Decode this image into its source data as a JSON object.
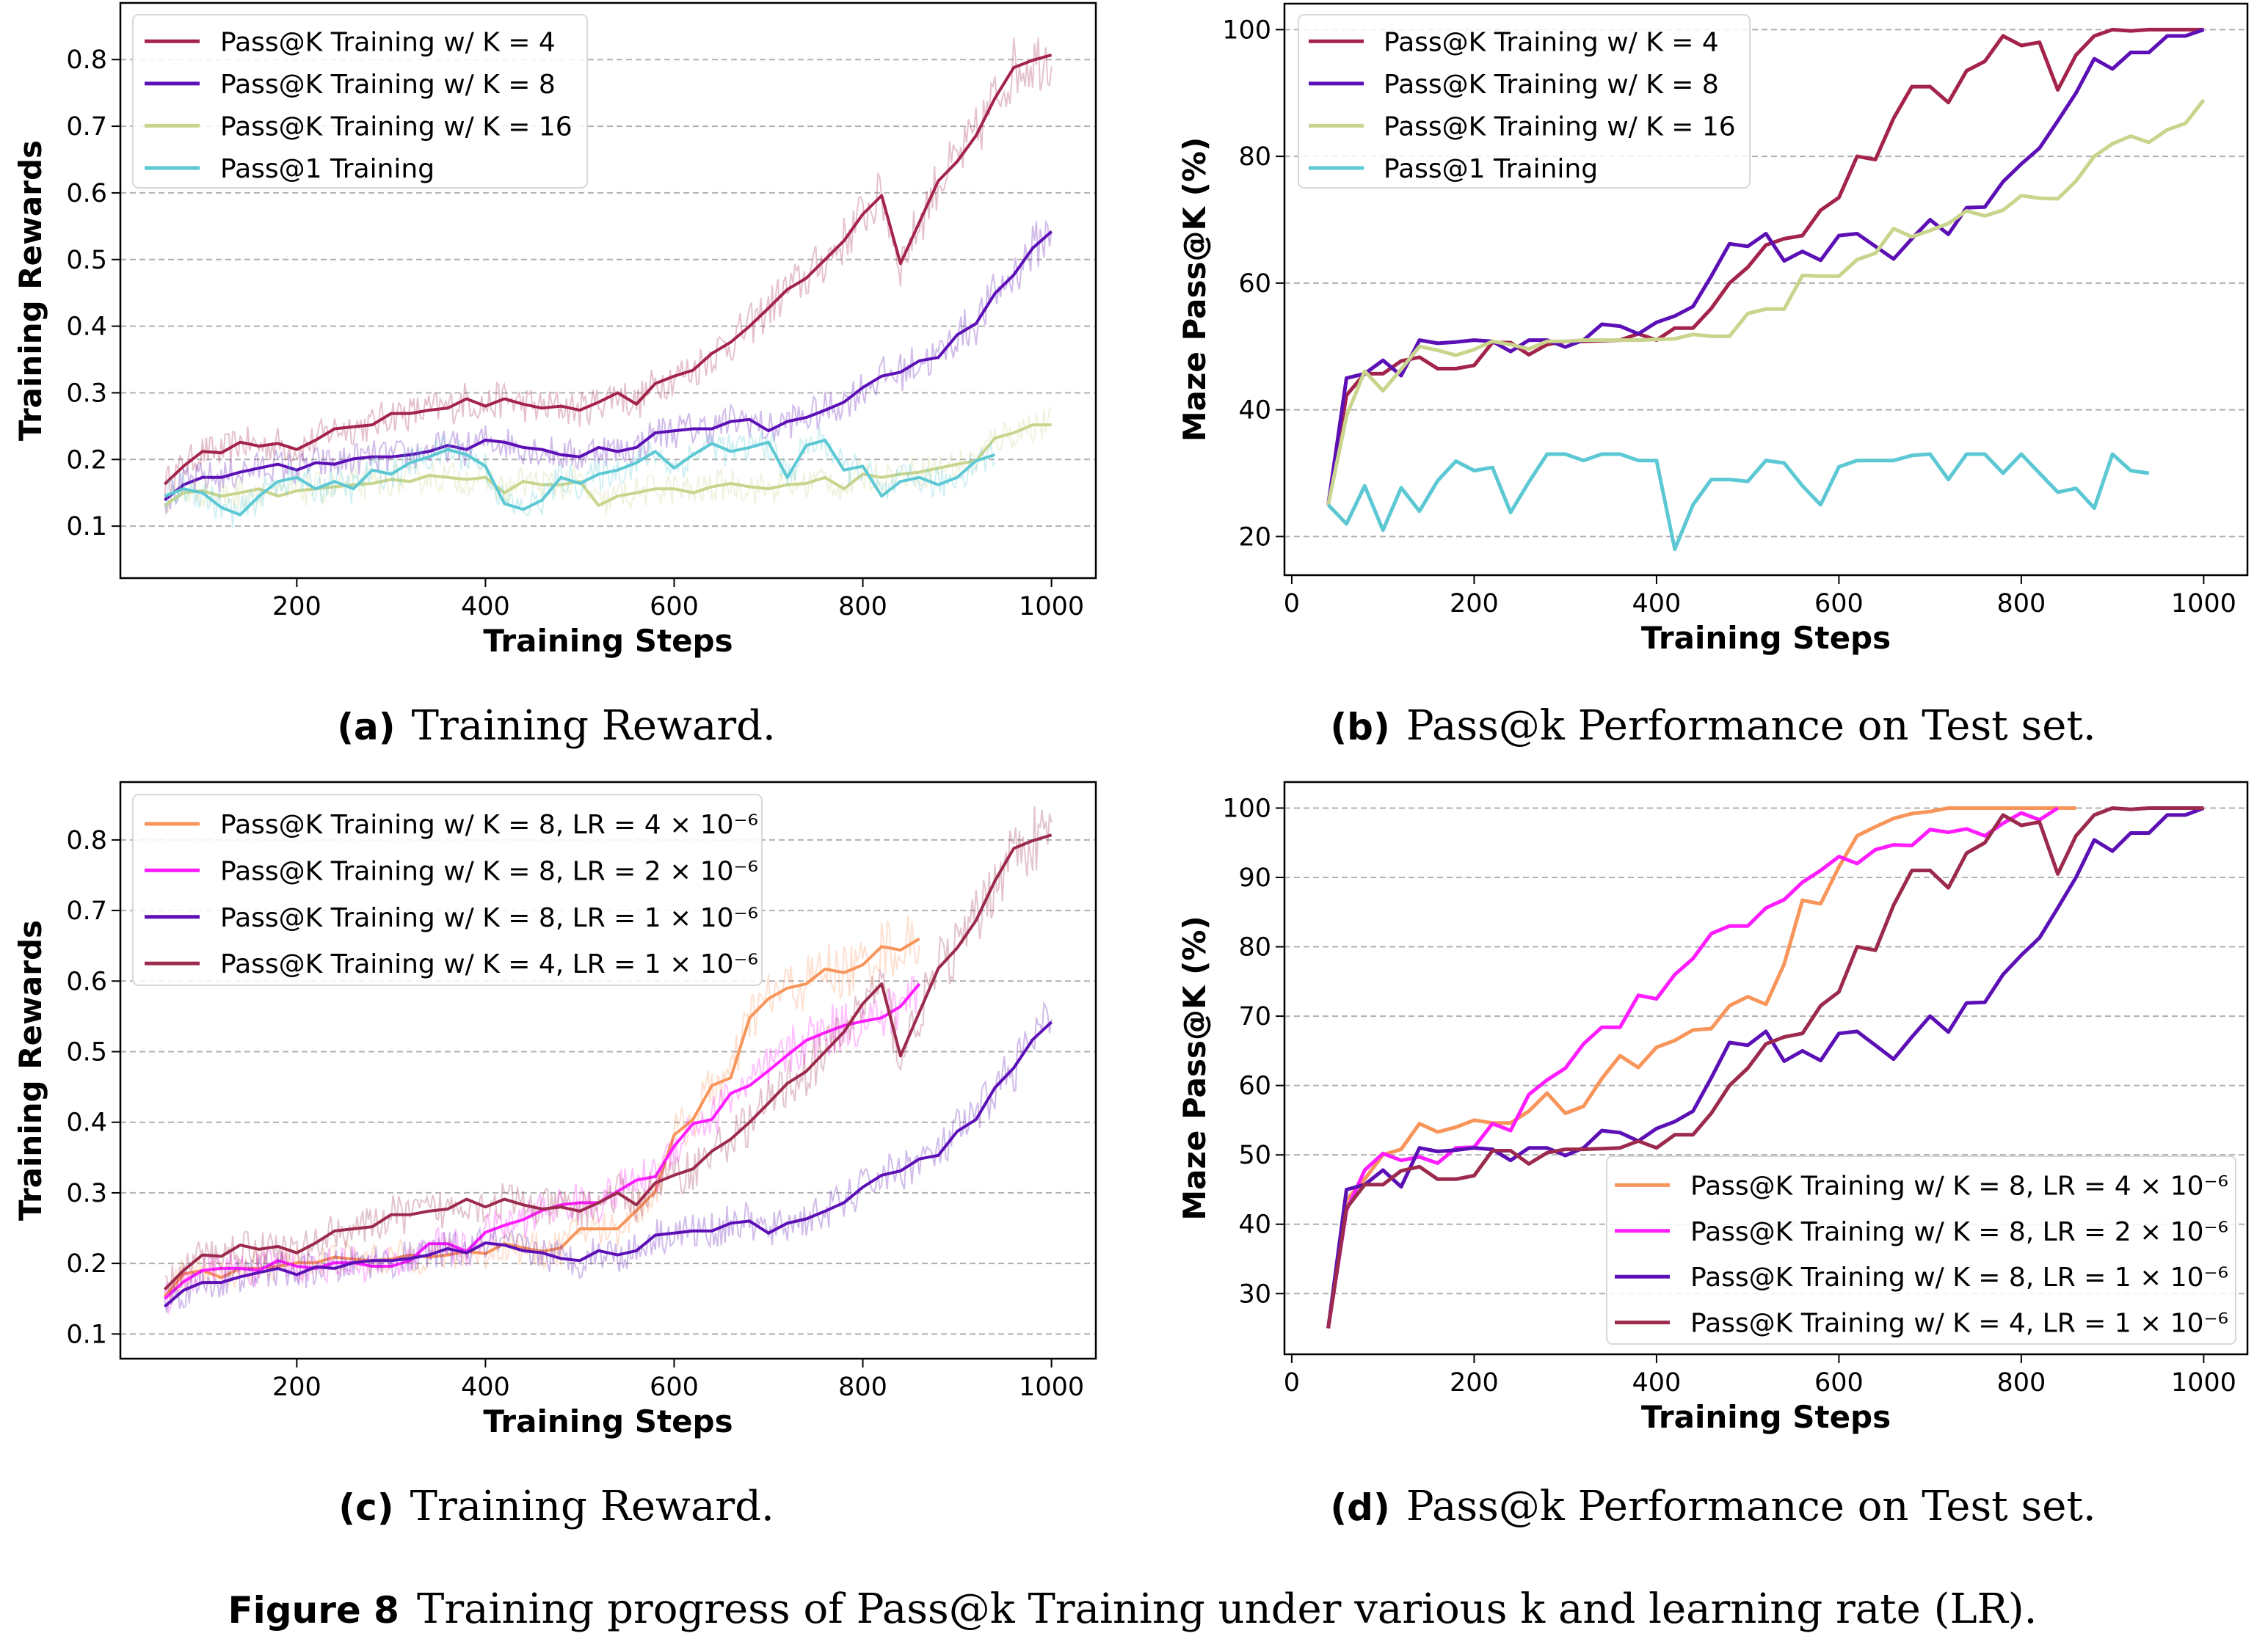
{
  "figure_caption": {
    "label": "Figure 8",
    "text": "Training progress of Pass@k Training under various k and learning rate (LR)."
  },
  "chart_data": [
    {
      "type": "line",
      "caption_label": "(a)",
      "caption": "Training Reward.",
      "xlabel": "Training Steps",
      "ylabel": "Training Rewards",
      "xlim": [
        13,
        1047
      ],
      "ylim": [
        0.022,
        0.885
      ],
      "xticks": [
        200,
        400,
        600,
        800,
        1000
      ],
      "yticks": [
        0.1,
        0.2,
        0.3,
        0.4,
        0.5,
        0.6,
        0.7,
        0.8
      ],
      "grid": "y-dashed",
      "legend_position": "top-left",
      "noisy_raw": true,
      "x_start": 60,
      "x_step": 20,
      "series": [
        {
          "name": "Pass@K Training w/ K = 4",
          "color": "#a3234a",
          "values": [
            0.163,
            0.19,
            0.212,
            0.21,
            0.226,
            0.22,
            0.224,
            0.215,
            0.229,
            0.246,
            0.249,
            0.252,
            0.269,
            0.269,
            0.274,
            0.277,
            0.291,
            0.28,
            0.291,
            0.283,
            0.277,
            0.28,
            0.274,
            0.286,
            0.3,
            0.283,
            0.314,
            0.325,
            0.334,
            0.359,
            0.376,
            0.4,
            0.427,
            0.455,
            0.472,
            0.5,
            0.528,
            0.568,
            0.596,
            0.494,
            0.556,
            0.618,
            0.647,
            0.686,
            0.742,
            0.788,
            0.799,
            0.807
          ]
        },
        {
          "name": "Pass@K Training w/ K = 8",
          "color": "#5b0fb5",
          "values": [
            0.139,
            0.162,
            0.173,
            0.173,
            0.181,
            0.187,
            0.193,
            0.184,
            0.195,
            0.193,
            0.201,
            0.204,
            0.204,
            0.207,
            0.212,
            0.221,
            0.215,
            0.229,
            0.226,
            0.218,
            0.215,
            0.207,
            0.204,
            0.218,
            0.212,
            0.218,
            0.24,
            0.243,
            0.246,
            0.246,
            0.257,
            0.26,
            0.243,
            0.257,
            0.263,
            0.274,
            0.286,
            0.308,
            0.325,
            0.331,
            0.348,
            0.353,
            0.387,
            0.404,
            0.449,
            0.477,
            0.517,
            0.542
          ]
        },
        {
          "name": "Pass@K Training w/ K = 16",
          "color": "#c9d48c",
          "values": [
            0.131,
            0.15,
            0.153,
            0.145,
            0.15,
            0.156,
            0.145,
            0.153,
            0.156,
            0.159,
            0.162,
            0.164,
            0.17,
            0.167,
            0.176,
            0.173,
            0.17,
            0.173,
            0.15,
            0.167,
            0.162,
            0.162,
            0.167,
            0.131,
            0.145,
            0.15,
            0.156,
            0.156,
            0.15,
            0.159,
            0.164,
            0.159,
            0.156,
            0.162,
            0.164,
            0.173,
            0.156,
            0.178,
            0.173,
            0.178,
            0.181,
            0.187,
            0.193,
            0.198,
            0.232,
            0.24,
            0.252,
            0.252
          ]
        },
        {
          "name": "Pass@1 Training",
          "color": "#5cc8d4",
          "values": [
            0.145,
            0.156,
            0.15,
            0.128,
            0.117,
            0.145,
            0.167,
            0.173,
            0.156,
            0.167,
            0.156,
            0.184,
            0.178,
            0.195,
            0.204,
            0.215,
            0.207,
            0.19,
            0.134,
            0.125,
            0.139,
            0.173,
            0.164,
            0.178,
            0.184,
            0.195,
            0.212,
            0.187,
            0.207,
            0.224,
            0.212,
            0.218,
            0.226,
            0.173,
            0.221,
            0.229,
            0.184,
            0.19,
            0.145,
            0.167,
            0.173,
            0.162,
            0.173,
            0.198,
            0.207
          ]
        }
      ]
    },
    {
      "type": "line",
      "caption_label": "(b)",
      "caption": "Pass@k Performance on Test set.",
      "xlabel": "Training Steps",
      "ylabel": "Maze Pass@K (%)",
      "xlim": [
        -8,
        1048
      ],
      "ylim": [
        13.9,
        104.1
      ],
      "xticks": [
        0,
        200,
        400,
        600,
        800,
        1000
      ],
      "yticks": [
        20,
        40,
        60,
        80,
        100
      ],
      "grid": "y-dashed",
      "legend_position": "top-left",
      "noisy_raw": false,
      "x_start": 40,
      "x_step": 20,
      "series": [
        {
          "name": "Pass@K Training w/ K = 4",
          "color": "#a3234a",
          "values": [
            25,
            42.3,
            45.7,
            45.7,
            47.7,
            48.3,
            46.5,
            46.5,
            47,
            50.6,
            50.6,
            48.7,
            50.3,
            50.8,
            50.8,
            50.9,
            51,
            52,
            51,
            52.9,
            52.9,
            56,
            60,
            62.5,
            66,
            67,
            67.5,
            71.5,
            73.5,
            80,
            79.5,
            86,
            91,
            91,
            88.5,
            93.5,
            95,
            99,
            97.5,
            98,
            90.5,
            96,
            99,
            100,
            99.8,
            100,
            100,
            100,
            100
          ]
        },
        {
          "name": "Pass@K Training w/ K = 8",
          "color": "#5b0fb5",
          "values": [
            25,
            45,
            45.7,
            47.8,
            45.4,
            51,
            50.5,
            50.7,
            51,
            50.8,
            49.2,
            51,
            51,
            49.9,
            51,
            53.5,
            53.2,
            52,
            53.8,
            54.8,
            56.3,
            61.1,
            66.2,
            65.8,
            67.8,
            63.5,
            65,
            63.6,
            67.5,
            67.8,
            65.8,
            63.8,
            67,
            70,
            67.7,
            71.9,
            72,
            76,
            78.8,
            81.3,
            85.6,
            90,
            95.4,
            93.8,
            96.4,
            96.4,
            99,
            99,
            100
          ]
        },
        {
          "name": "Pass@K Training w/ K = 16",
          "color": "#c9d48c",
          "values": [
            25,
            39,
            46.1,
            43,
            46.4,
            50,
            49.4,
            48.6,
            49.5,
            50.8,
            50.3,
            49.6,
            50.8,
            50.8,
            51,
            51,
            51,
            51,
            51.1,
            51.2,
            51.9,
            51.6,
            51.6,
            55.2,
            55.9,
            55.9,
            61.2,
            61.1,
            61.1,
            63.7,
            64.7,
            68.6,
            67.3,
            68.3,
            69.4,
            71.4,
            70.6,
            71.5,
            73.8,
            73.4,
            73.3,
            76.1,
            80,
            82,
            83.2,
            82.2,
            84.2,
            85.2,
            88.9
          ]
        },
        {
          "name": "Pass@1 Training",
          "color": "#5cc8d4",
          "values": [
            25,
            22,
            28,
            21,
            27.7,
            24,
            28.8,
            31.9,
            30.4,
            30.9,
            23.8,
            28.6,
            33,
            33,
            32,
            33,
            33,
            32,
            32,
            18,
            25,
            29,
            29,
            28.7,
            32,
            31.6,
            28,
            25,
            31,
            32,
            32,
            32,
            32.8,
            33,
            29,
            33,
            33,
            30,
            33,
            30,
            27,
            27.6,
            24.5,
            33,
            30.4,
            30
          ]
        }
      ]
    },
    {
      "type": "line",
      "caption_label": "(c)",
      "caption": "Training Reward.",
      "xlabel": "Training Steps",
      "ylabel": "Training Rewards",
      "xlim": [
        13,
        1047
      ],
      "ylim": [
        0.065,
        0.882
      ],
      "xticks": [
        200,
        400,
        600,
        800,
        1000
      ],
      "yticks": [
        0.1,
        0.2,
        0.3,
        0.4,
        0.5,
        0.6,
        0.7,
        0.8
      ],
      "grid": "y-dashed",
      "legend_position": "top-left",
      "noisy_raw": true,
      "x_start": 60,
      "x_step": 20,
      "series": [
        {
          "name": "Pass@K Training w/ K = 8, LR = 4 × 10⁻⁶",
          "color": "#f7955a",
          "values": [
            0.153,
            0.185,
            0.19,
            0.18,
            0.193,
            0.193,
            0.196,
            0.201,
            0.201,
            0.209,
            0.206,
            0.204,
            0.206,
            0.212,
            0.209,
            0.212,
            0.217,
            0.214,
            0.228,
            0.222,
            0.217,
            0.222,
            0.249,
            0.249,
            0.249,
            0.275,
            0.302,
            0.382,
            0.404,
            0.452,
            0.463,
            0.548,
            0.575,
            0.59,
            0.596,
            0.617,
            0.612,
            0.623,
            0.649,
            0.644,
            0.66
          ]
        },
        {
          "name": "Pass@K Training w/ K = 8, LR = 2 × 10⁻⁶",
          "color": "#ff1cff",
          "values": [
            0.15,
            0.174,
            0.19,
            0.193,
            0.193,
            0.19,
            0.204,
            0.196,
            0.193,
            0.201,
            0.201,
            0.196,
            0.196,
            0.204,
            0.228,
            0.228,
            0.217,
            0.244,
            0.254,
            0.262,
            0.275,
            0.283,
            0.286,
            0.286,
            0.302,
            0.318,
            0.323,
            0.366,
            0.398,
            0.404,
            0.441,
            0.452,
            0.473,
            0.495,
            0.516,
            0.527,
            0.537,
            0.543,
            0.548,
            0.564,
            0.596
          ]
        },
        {
          "name": "Pass@K Training w/ K = 8, LR = 1 × 10⁻⁶",
          "color": "#5b0fb5",
          "values": [
            0.139,
            0.162,
            0.173,
            0.173,
            0.181,
            0.187,
            0.193,
            0.184,
            0.195,
            0.193,
            0.201,
            0.204,
            0.204,
            0.207,
            0.212,
            0.221,
            0.215,
            0.229,
            0.226,
            0.218,
            0.215,
            0.207,
            0.204,
            0.218,
            0.212,
            0.218,
            0.24,
            0.243,
            0.246,
            0.246,
            0.257,
            0.26,
            0.243,
            0.257,
            0.263,
            0.274,
            0.286,
            0.308,
            0.325,
            0.331,
            0.348,
            0.353,
            0.387,
            0.404,
            0.449,
            0.477,
            0.517,
            0.542
          ]
        },
        {
          "name": "Pass@K Training w/ K = 4, LR = 1 × 10⁻⁶",
          "color": "#9b2a4c",
          "values": [
            0.163,
            0.19,
            0.212,
            0.21,
            0.226,
            0.22,
            0.224,
            0.215,
            0.229,
            0.246,
            0.249,
            0.252,
            0.269,
            0.269,
            0.274,
            0.277,
            0.291,
            0.28,
            0.291,
            0.283,
            0.277,
            0.28,
            0.274,
            0.286,
            0.3,
            0.283,
            0.314,
            0.325,
            0.334,
            0.359,
            0.376,
            0.4,
            0.427,
            0.455,
            0.472,
            0.5,
            0.528,
            0.568,
            0.596,
            0.494,
            0.556,
            0.618,
            0.647,
            0.686,
            0.742,
            0.788,
            0.799,
            0.807
          ]
        }
      ]
    },
    {
      "type": "line",
      "caption_label": "(d)",
      "caption": "Pass@k Performance on Test set.",
      "xlabel": "Training Steps",
      "ylabel": "Maze Pass@K (%)",
      "xlim": [
        -8,
        1048
      ],
      "ylim": [
        21.25,
        103.75
      ],
      "xticks": [
        0,
        200,
        400,
        600,
        800,
        1000
      ],
      "yticks": [
        30,
        40,
        50,
        60,
        70,
        80,
        90,
        100
      ],
      "grid": "y-dashed",
      "legend_position": "bottom-right",
      "noisy_raw": false,
      "x_start": 40,
      "x_step": 20,
      "series": [
        {
          "name": "Pass@K Training w/ K = 8, LR = 4 × 10⁻⁶",
          "color": "#f7955a",
          "values": [
            25,
            43.5,
            46.5,
            50,
            50.8,
            54.5,
            53.3,
            54,
            55,
            54.6,
            54.6,
            56.3,
            58.9,
            56,
            57,
            61,
            64.3,
            62.6,
            65.5,
            66.5,
            68,
            68.2,
            71.5,
            72.8,
            71.7,
            77.5,
            86.7,
            86.2,
            91.5,
            96,
            97.3,
            98.5,
            99.2,
            99.5,
            100,
            100,
            100,
            100,
            100,
            100,
            100,
            100
          ]
        },
        {
          "name": "Pass@K Training w/ K = 8, LR = 2 × 10⁻⁶",
          "color": "#ff1cff",
          "values": [
            25,
            42,
            47.8,
            50.2,
            49.2,
            49.7,
            48.8,
            51,
            51.1,
            54.5,
            53.5,
            58.7,
            60.8,
            62.5,
            66,
            68.4,
            68.4,
            73,
            72.5,
            76,
            78.3,
            81.9,
            83,
            83,
            85.6,
            86.8,
            89.3,
            91,
            93,
            92,
            94,
            94.7,
            94.6,
            96.9,
            96.5,
            97,
            96,
            97.8,
            99.3,
            98.3,
            100
          ]
        },
        {
          "name": "Pass@K Training w/ K = 8, LR = 1 × 10⁻⁶",
          "color": "#5b0fb5",
          "values": [
            25,
            45,
            45.7,
            47.8,
            45.4,
            51,
            50.5,
            50.7,
            51,
            50.8,
            49.2,
            51,
            51,
            49.9,
            51,
            53.5,
            53.2,
            52,
            53.8,
            54.8,
            56.3,
            61.1,
            66.2,
            65.8,
            67.8,
            63.5,
            65,
            63.6,
            67.5,
            67.8,
            65.8,
            63.8,
            67,
            70,
            67.7,
            71.9,
            72,
            76,
            78.8,
            81.3,
            85.6,
            90,
            95.4,
            93.8,
            96.4,
            96.4,
            99,
            99,
            100
          ]
        },
        {
          "name": "Pass@K Training w/ K = 4, LR = 1 × 10⁻⁶",
          "color": "#9b2a4c",
          "values": [
            25,
            42.3,
            45.7,
            45.7,
            47.7,
            48.3,
            46.5,
            46.5,
            47,
            50.6,
            50.6,
            48.7,
            50.3,
            50.8,
            50.8,
            50.9,
            51,
            52,
            51,
            52.9,
            52.9,
            56,
            60,
            62.5,
            66,
            67,
            67.5,
            71.5,
            73.5,
            80,
            79.5,
            86,
            91,
            91,
            88.5,
            93.5,
            95,
            99,
            97.5,
            98,
            90.5,
            96,
            99,
            100,
            99.8,
            100,
            100,
            100,
            100
          ]
        }
      ]
    }
  ]
}
